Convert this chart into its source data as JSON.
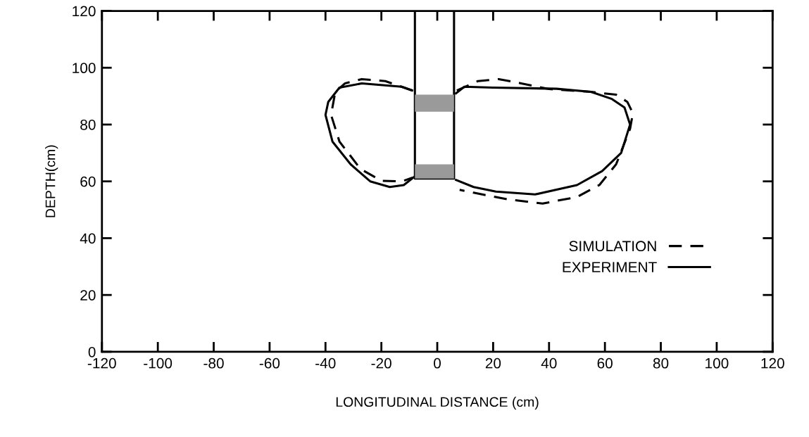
{
  "chart_data": {
    "type": "line",
    "xlabel": "LONGITUDINAL DISTANCE (cm)",
    "ylabel": "DEPTH(cm)",
    "xlim": [
      -120,
      120
    ],
    "xticks": [
      -120,
      -100,
      -80,
      -60,
      -40,
      -20,
      0,
      20,
      40,
      60,
      80,
      100,
      120
    ],
    "ylim": [
      0,
      120
    ],
    "yticks": [
      0,
      20,
      40,
      60,
      80,
      100,
      120
    ],
    "grid": false,
    "legend": "bottom right",
    "marker": "none",
    "series": [
      {
        "name": "SIMULATION",
        "color": "#000000",
        "line_style": "dashed",
        "x": [
          -9,
          -18.6,
          -27,
          -33,
          -36.5,
          -38,
          -35,
          -27.5,
          -20,
          -12.6,
          -8.7,
          null,
          7,
          14.6,
          22,
          30,
          40,
          55,
          64,
          68,
          70,
          69,
          64,
          58,
          50,
          37.7,
          25,
          13,
          8
        ],
        "values": [
          92,
          95.3,
          96,
          94.5,
          91.5,
          83.4,
          74,
          64.4,
          60.2,
          60,
          61.4,
          null,
          92,
          95.3,
          96,
          94.5,
          92.5,
          91.5,
          90.5,
          88,
          84,
          78.5,
          66,
          58.7,
          54.5,
          52.2,
          53.7,
          56,
          57
        ]
      },
      {
        "name": "EXPERIMENT",
        "color": "#000000",
        "line_style": "solid",
        "x": [
          -9,
          -12.7,
          -27,
          -35,
          -39,
          -40,
          -37.5,
          -31,
          -24,
          -17,
          -12,
          -7.7,
          null,
          6.7,
          9.7,
          20,
          42.7,
          55,
          62.5,
          67,
          69,
          65.8,
          59,
          50,
          35,
          21,
          13,
          6.7
        ],
        "values": [
          92,
          93.3,
          94.5,
          93,
          88,
          83.4,
          74,
          66,
          60,
          58,
          58.7,
          62,
          null,
          91,
          93.3,
          93,
          92.6,
          91.5,
          89,
          86,
          80,
          70,
          63.6,
          58.7,
          55.4,
          56.4,
          58,
          60.5
        ]
      },
      {
        "color": "#000000",
        "line_style": "solid",
        "x": [
          -8,
          -8,
          6,
          6
        ],
        "values": [
          120,
          61,
          61,
          120
        ]
      },
      {
        "type": "area",
        "color": "#9a9a9a",
        "x": [
          -8,
          6,
          6,
          -8,
          null,
          -8,
          6,
          6,
          -8
        ],
        "values": [
          84.5,
          84.5,
          90.5,
          90.5,
          null,
          61,
          61,
          66,
          66
        ]
      }
    ]
  }
}
